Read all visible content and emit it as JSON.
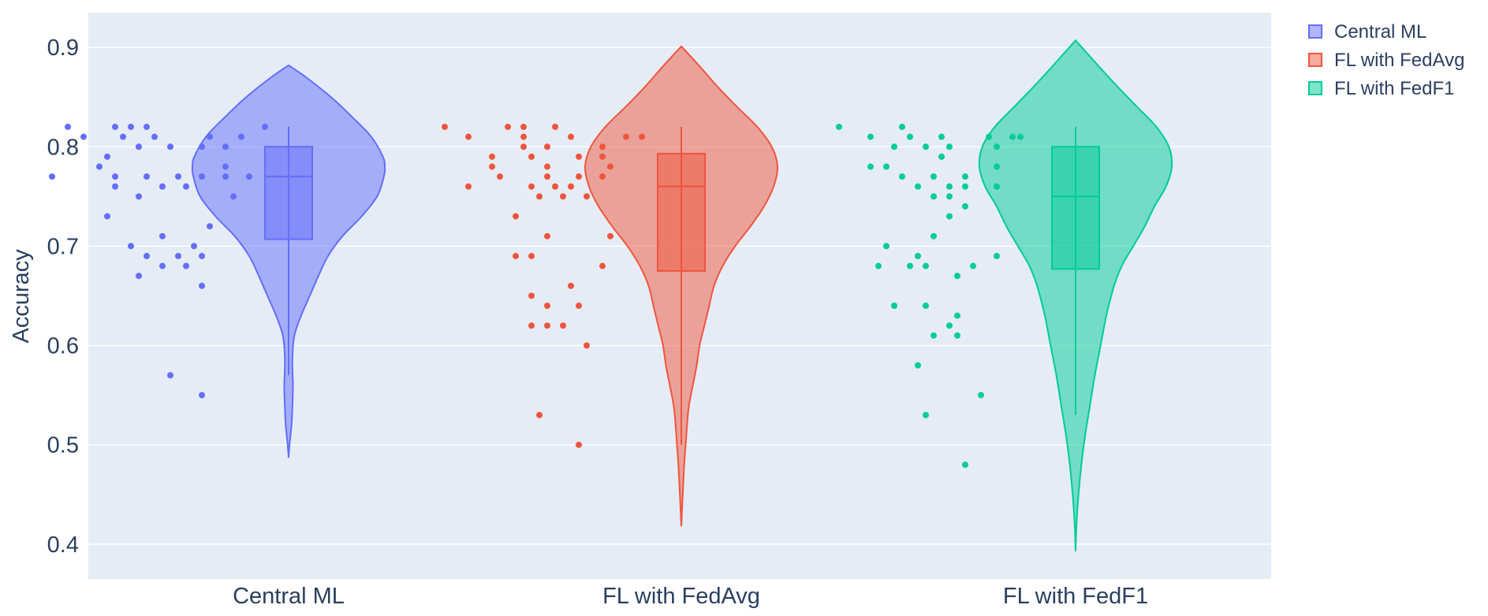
{
  "chart_data": {
    "type": "violin",
    "title": "",
    "xlabel": "",
    "ylabel": "Accuracy",
    "ylim": [
      0.365,
      0.935
    ],
    "yticks": [
      "0.4",
      "0.5",
      "0.6",
      "0.7",
      "0.8",
      "0.9"
    ],
    "grid": true,
    "legend_position": "top-right",
    "categories": [
      "Central ML",
      "FL with FedAvg",
      "FL with FedF1"
    ],
    "series": [
      {
        "name": "Central ML",
        "color": "#636efa",
        "box": {
          "min": 0.57,
          "q1": 0.707,
          "median": 0.77,
          "q3": 0.8,
          "max": 0.82
        },
        "violin_range": [
          0.487,
          0.882
        ],
        "violin_profile": [
          [
            0.487,
            0.0
          ],
          [
            0.5,
            0.01
          ],
          [
            0.52,
            0.03
          ],
          [
            0.54,
            0.04
          ],
          [
            0.56,
            0.045
          ],
          [
            0.575,
            0.04
          ],
          [
            0.59,
            0.04
          ],
          [
            0.61,
            0.06
          ],
          [
            0.63,
            0.13
          ],
          [
            0.65,
            0.22
          ],
          [
            0.67,
            0.31
          ],
          [
            0.69,
            0.41
          ],
          [
            0.71,
            0.56
          ],
          [
            0.73,
            0.76
          ],
          [
            0.75,
            0.92
          ],
          [
            0.77,
            0.99
          ],
          [
            0.78,
            1.0
          ],
          [
            0.79,
            0.98
          ],
          [
            0.81,
            0.86
          ],
          [
            0.83,
            0.66
          ],
          [
            0.85,
            0.44
          ],
          [
            0.87,
            0.18
          ],
          [
            0.882,
            0.0
          ]
        ],
        "points": [
          [
            -0.28,
            0.82
          ],
          [
            -0.22,
            0.82
          ],
          [
            -0.2,
            0.82
          ],
          [
            -0.18,
            0.82
          ],
          [
            -0.03,
            0.82
          ],
          [
            -0.26,
            0.81
          ],
          [
            -0.21,
            0.81
          ],
          [
            -0.17,
            0.81
          ],
          [
            -0.1,
            0.81
          ],
          [
            -0.06,
            0.81
          ],
          [
            -0.19,
            0.8
          ],
          [
            -0.15,
            0.8
          ],
          [
            -0.11,
            0.8
          ],
          [
            -0.08,
            0.8
          ],
          [
            -0.23,
            0.79
          ],
          [
            -0.08,
            0.78
          ],
          [
            -0.24,
            0.78
          ],
          [
            -0.3,
            0.77
          ],
          [
            -0.22,
            0.77
          ],
          [
            -0.18,
            0.77
          ],
          [
            -0.14,
            0.77
          ],
          [
            -0.11,
            0.77
          ],
          [
            -0.08,
            0.77
          ],
          [
            -0.05,
            0.77
          ],
          [
            -0.22,
            0.76
          ],
          [
            -0.16,
            0.76
          ],
          [
            -0.13,
            0.76
          ],
          [
            -0.19,
            0.75
          ],
          [
            -0.07,
            0.75
          ],
          [
            -0.23,
            0.73
          ],
          [
            -0.1,
            0.72
          ],
          [
            -0.16,
            0.71
          ],
          [
            -0.2,
            0.7
          ],
          [
            -0.12,
            0.7
          ],
          [
            -0.18,
            0.69
          ],
          [
            -0.14,
            0.69
          ],
          [
            -0.11,
            0.69
          ],
          [
            -0.16,
            0.68
          ],
          [
            -0.13,
            0.68
          ],
          [
            -0.19,
            0.67
          ],
          [
            -0.11,
            0.66
          ],
          [
            -0.15,
            0.57
          ],
          [
            -0.11,
            0.55
          ]
        ]
      },
      {
        "name": "FL with FedAvg",
        "color": "#ef553b",
        "box": {
          "min": 0.5,
          "q1": 0.675,
          "median": 0.76,
          "q3": 0.793,
          "max": 0.82
        },
        "violin_range": [
          0.418,
          0.901
        ],
        "violin_profile": [
          [
            0.418,
            0.0
          ],
          [
            0.44,
            0.01
          ],
          [
            0.46,
            0.02
          ],
          [
            0.48,
            0.03
          ],
          [
            0.5,
            0.045
          ],
          [
            0.52,
            0.06
          ],
          [
            0.54,
            0.08
          ],
          [
            0.56,
            0.12
          ],
          [
            0.58,
            0.16
          ],
          [
            0.6,
            0.19
          ],
          [
            0.62,
            0.24
          ],
          [
            0.64,
            0.29
          ],
          [
            0.66,
            0.34
          ],
          [
            0.68,
            0.43
          ],
          [
            0.7,
            0.56
          ],
          [
            0.72,
            0.72
          ],
          [
            0.74,
            0.86
          ],
          [
            0.76,
            0.96
          ],
          [
            0.78,
            1.0
          ],
          [
            0.8,
            0.94
          ],
          [
            0.82,
            0.79
          ],
          [
            0.84,
            0.58
          ],
          [
            0.86,
            0.38
          ],
          [
            0.88,
            0.2
          ],
          [
            0.901,
            0.0
          ]
        ],
        "points": [
          [
            -0.3,
            0.82
          ],
          [
            -0.22,
            0.82
          ],
          [
            -0.2,
            0.82
          ],
          [
            -0.16,
            0.82
          ],
          [
            -0.27,
            0.81
          ],
          [
            -0.2,
            0.81
          ],
          [
            -0.14,
            0.81
          ],
          [
            -0.07,
            0.81
          ],
          [
            -0.05,
            0.81
          ],
          [
            -0.2,
            0.8
          ],
          [
            -0.17,
            0.8
          ],
          [
            -0.1,
            0.8
          ],
          [
            -0.24,
            0.79
          ],
          [
            -0.19,
            0.79
          ],
          [
            -0.13,
            0.79
          ],
          [
            -0.1,
            0.79
          ],
          [
            -0.17,
            0.78
          ],
          [
            -0.24,
            0.78
          ],
          [
            -0.09,
            0.78
          ],
          [
            -0.23,
            0.77
          ],
          [
            -0.17,
            0.77
          ],
          [
            -0.13,
            0.77
          ],
          [
            -0.1,
            0.77
          ],
          [
            -0.27,
            0.76
          ],
          [
            -0.19,
            0.76
          ],
          [
            -0.16,
            0.76
          ],
          [
            -0.14,
            0.76
          ],
          [
            -0.18,
            0.75
          ],
          [
            -0.15,
            0.75
          ],
          [
            -0.12,
            0.75
          ],
          [
            -0.21,
            0.73
          ],
          [
            -0.17,
            0.71
          ],
          [
            -0.09,
            0.71
          ],
          [
            -0.21,
            0.69
          ],
          [
            -0.19,
            0.69
          ],
          [
            -0.1,
            0.68
          ],
          [
            -0.14,
            0.66
          ],
          [
            -0.19,
            0.65
          ],
          [
            -0.13,
            0.64
          ],
          [
            -0.17,
            0.64
          ],
          [
            -0.19,
            0.62
          ],
          [
            -0.17,
            0.62
          ],
          [
            -0.15,
            0.62
          ],
          [
            -0.12,
            0.6
          ],
          [
            -0.18,
            0.53
          ],
          [
            -0.13,
            0.5
          ]
        ]
      },
      {
        "name": "FL with FedF1",
        "color": "#00cc96",
        "box": {
          "min": 0.53,
          "q1": 0.677,
          "median": 0.75,
          "q3": 0.8,
          "max": 0.82
        },
        "violin_range": [
          0.393,
          0.907
        ],
        "violin_profile": [
          [
            0.393,
            0.0
          ],
          [
            0.42,
            0.01
          ],
          [
            0.45,
            0.03
          ],
          [
            0.48,
            0.06
          ],
          [
            0.51,
            0.1
          ],
          [
            0.54,
            0.15
          ],
          [
            0.57,
            0.2
          ],
          [
            0.6,
            0.26
          ],
          [
            0.63,
            0.32
          ],
          [
            0.66,
            0.4
          ],
          [
            0.68,
            0.48
          ],
          [
            0.7,
            0.6
          ],
          [
            0.72,
            0.72
          ],
          [
            0.74,
            0.82
          ],
          [
            0.76,
            0.94
          ],
          [
            0.78,
            1.0
          ],
          [
            0.8,
            0.97
          ],
          [
            0.82,
            0.84
          ],
          [
            0.84,
            0.64
          ],
          [
            0.86,
            0.44
          ],
          [
            0.88,
            0.25
          ],
          [
            0.907,
            0.0
          ]
        ],
        "points": [
          [
            -0.3,
            0.82
          ],
          [
            -0.22,
            0.82
          ],
          [
            -0.26,
            0.81
          ],
          [
            -0.21,
            0.81
          ],
          [
            -0.17,
            0.81
          ],
          [
            -0.11,
            0.81
          ],
          [
            -0.08,
            0.81
          ],
          [
            -0.07,
            0.81
          ],
          [
            -0.23,
            0.8
          ],
          [
            -0.19,
            0.8
          ],
          [
            -0.16,
            0.8
          ],
          [
            -0.1,
            0.8
          ],
          [
            -0.17,
            0.79
          ],
          [
            -0.26,
            0.78
          ],
          [
            -0.24,
            0.78
          ],
          [
            -0.1,
            0.78
          ],
          [
            -0.22,
            0.77
          ],
          [
            -0.18,
            0.77
          ],
          [
            -0.14,
            0.77
          ],
          [
            -0.2,
            0.76
          ],
          [
            -0.16,
            0.76
          ],
          [
            -0.14,
            0.76
          ],
          [
            -0.1,
            0.76
          ],
          [
            -0.18,
            0.75
          ],
          [
            -0.16,
            0.75
          ],
          [
            -0.14,
            0.74
          ],
          [
            -0.16,
            0.73
          ],
          [
            -0.18,
            0.71
          ],
          [
            -0.24,
            0.7
          ],
          [
            -0.2,
            0.69
          ],
          [
            -0.1,
            0.69
          ],
          [
            -0.25,
            0.68
          ],
          [
            -0.21,
            0.68
          ],
          [
            -0.19,
            0.68
          ],
          [
            -0.13,
            0.68
          ],
          [
            -0.15,
            0.67
          ],
          [
            -0.23,
            0.64
          ],
          [
            -0.19,
            0.64
          ],
          [
            -0.15,
            0.63
          ],
          [
            -0.16,
            0.62
          ],
          [
            -0.18,
            0.61
          ],
          [
            -0.15,
            0.61
          ],
          [
            -0.2,
            0.58
          ],
          [
            -0.12,
            0.55
          ],
          [
            -0.19,
            0.53
          ],
          [
            -0.14,
            0.48
          ]
        ]
      }
    ]
  }
}
